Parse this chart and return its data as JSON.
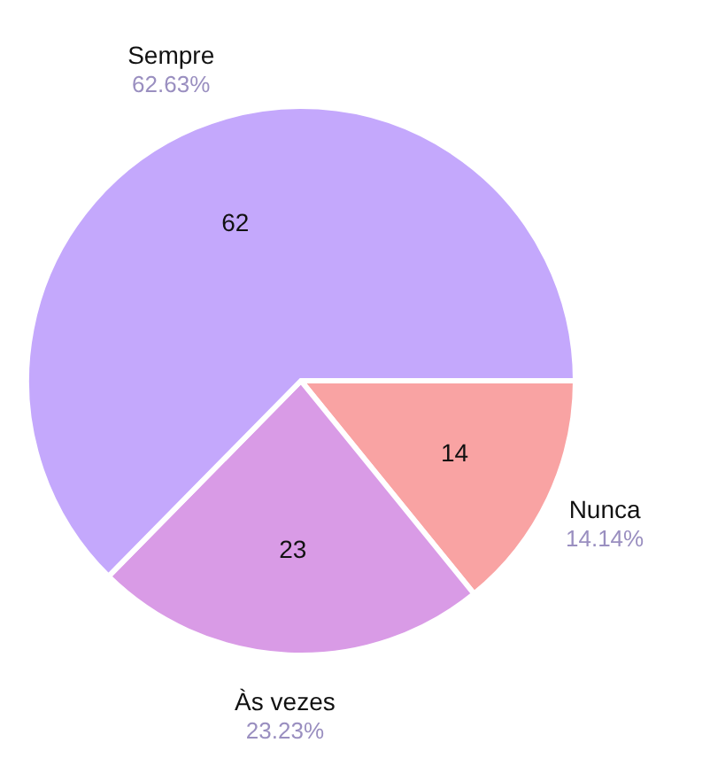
{
  "chart_data": {
    "type": "pie",
    "categories": [
      "Nunca",
      "Às vezes",
      "Sempre"
    ],
    "values": [
      14,
      23,
      62
    ],
    "colors": [
      "#f9a3a3",
      "#d99be6",
      "#c4a8fc"
    ],
    "data_labels": true,
    "annotations": [
      "14.14%",
      "23.23%",
      "62.63%"
    ]
  }
}
